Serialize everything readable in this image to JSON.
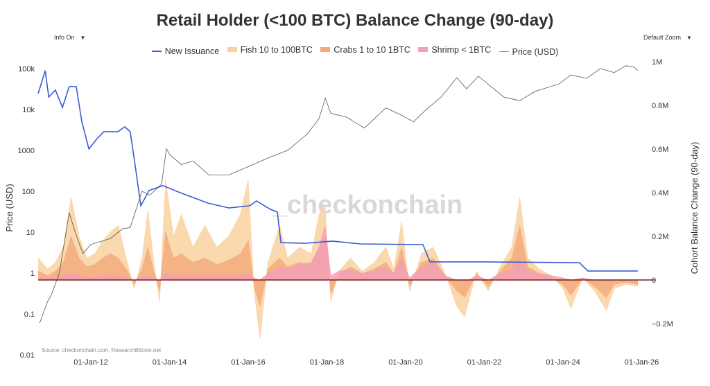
{
  "controls": {
    "info_label": "Info On",
    "zoom_label": "Default Zoom",
    "arrow": "▼"
  },
  "source": "Source: checkonchain.com, ResearchBitcoin.net",
  "watermark": "_checkonchain",
  "chart_data": {
    "type": "area",
    "title": "Retail Holder (<100 BTC) Balance Change (90-day)",
    "legend_position": "top",
    "grid": false,
    "x_axis": {
      "type": "date",
      "range": [
        2010.67,
        2025.9
      ],
      "tick_labels": [
        "01-Jan-12",
        "01-Jan-14",
        "01-Jan-16",
        "01-Jan-18",
        "01-Jan-20",
        "01-Jan-22",
        "01-Jan-24",
        "01-Jan-26"
      ],
      "tick_years": [
        2012,
        2014,
        2016,
        2018,
        2020,
        2022,
        2024,
        2026
      ]
    },
    "y_left": {
      "label": "Price (USD)",
      "scale": "log",
      "range": [
        0.01,
        100000
      ],
      "tick_labels": [
        "100k",
        "10k",
        "1000",
        "100",
        "10",
        "1",
        "0.1",
        "0.01"
      ],
      "tick_values": [
        100000,
        10000,
        1000,
        100,
        10,
        1,
        0.1,
        0.01
      ]
    },
    "y_right": {
      "label": "Cohort Balance Change (90-day)",
      "scale": "linear",
      "range": [
        -0.3,
        1.05
      ],
      "unit": "M",
      "tick_labels": [
        "1M",
        "0.8M",
        "0.6M",
        "0.4M",
        "0.2M",
        "0",
        "−0.2M"
      ],
      "tick_values": [
        1,
        0.8,
        0.6,
        0.4,
        0.2,
        0,
        -0.2
      ]
    },
    "colors": {
      "issuance": "#3a5bd0",
      "fish": "#f9d2a0",
      "crabs": "#f4a97a",
      "shrimp": "#f2a0b4",
      "price": "#555555",
      "zero": "#7a1f1f"
    },
    "x": [
      2010.67,
      2010.9,
      2011.1,
      2011.3,
      2011.5,
      2011.7,
      2011.9,
      2012.1,
      2012.3,
      2012.5,
      2012.7,
      2012.9,
      2013.1,
      2013.3,
      2013.45,
      2013.6,
      2013.75,
      2013.9,
      2014.1,
      2014.3,
      2014.6,
      2014.9,
      2015.2,
      2015.5,
      2015.8,
      2016.0,
      2016.15,
      2016.3,
      2016.5,
      2016.8,
      2017.0,
      2017.3,
      2017.6,
      2017.8,
      2017.95,
      2018.1,
      2018.3,
      2018.6,
      2018.9,
      2019.2,
      2019.5,
      2019.7,
      2019.9,
      2020.1,
      2020.4,
      2020.7,
      2021.0,
      2021.3,
      2021.5,
      2021.8,
      2022.1,
      2022.4,
      2022.7,
      2022.9,
      2023.1,
      2023.4,
      2023.7,
      2024.0,
      2024.2,
      2024.5,
      2024.8,
      2025.1,
      2025.3,
      2025.6,
      2025.9
    ],
    "series": [
      {
        "name": "Fish 10 to 100BTC",
        "axis": "right",
        "values": [
          0.1,
          0.05,
          0.08,
          0.15,
          0.38,
          0.2,
          0.1,
          0.12,
          0.18,
          0.22,
          0.25,
          0.1,
          -0.04,
          0.1,
          0.32,
          0.08,
          -0.1,
          0.46,
          0.2,
          0.3,
          0.15,
          0.25,
          0.15,
          0.2,
          0.3,
          0.46,
          -0.05,
          -0.27,
          0.08,
          0.25,
          0.1,
          0.15,
          0.12,
          0.3,
          0.35,
          -0.1,
          0.04,
          0.1,
          0.04,
          0.08,
          0.15,
          0.05,
          0.27,
          -0.05,
          0.12,
          0.15,
          0.03,
          -0.12,
          -0.17,
          0.04,
          -0.05,
          0.06,
          0.15,
          0.38,
          0.1,
          0.05,
          0.02,
          -0.04,
          -0.13,
          0.01,
          -0.05,
          -0.14,
          -0.04,
          -0.02,
          -0.03
        ]
      },
      {
        "name": "Crabs 1 to 10 1BTC",
        "axis": "right",
        "values": [
          0.04,
          0.02,
          0.04,
          0.08,
          0.2,
          0.1,
          0.06,
          0.07,
          0.1,
          0.12,
          0.1,
          0.05,
          -0.02,
          0.05,
          0.15,
          0.04,
          -0.05,
          0.22,
          0.1,
          0.12,
          0.08,
          0.1,
          0.07,
          0.09,
          0.12,
          0.18,
          -0.03,
          -0.12,
          0.05,
          0.1,
          0.06,
          0.08,
          0.07,
          0.15,
          0.2,
          -0.06,
          0.02,
          0.06,
          0.03,
          0.05,
          0.08,
          0.03,
          0.15,
          -0.03,
          0.08,
          0.1,
          0.02,
          -0.05,
          -0.08,
          0.03,
          -0.03,
          0.04,
          0.1,
          0.25,
          0.06,
          0.03,
          0.01,
          -0.02,
          -0.07,
          0.01,
          -0.03,
          -0.08,
          -0.02,
          -0.01,
          -0.02
        ]
      },
      {
        "name": "Shrimp < 1BTC",
        "axis": "right",
        "values": [
          0.01,
          0.01,
          0.01,
          0.02,
          0.03,
          0.02,
          0.01,
          0.01,
          0.02,
          0.02,
          0.02,
          0.01,
          0.0,
          0.01,
          0.02,
          0.01,
          0.0,
          0.03,
          0.02,
          0.02,
          0.02,
          0.02,
          0.02,
          0.02,
          0.02,
          0.03,
          0.01,
          0.0,
          0.03,
          0.06,
          0.05,
          0.07,
          0.08,
          0.15,
          0.25,
          0.02,
          0.04,
          0.05,
          0.03,
          0.04,
          0.06,
          0.03,
          0.1,
          0.01,
          0.06,
          0.08,
          0.02,
          0.0,
          -0.01,
          0.02,
          0.0,
          0.03,
          0.05,
          0.1,
          0.04,
          0.03,
          0.02,
          0.01,
          0.0,
          0.01,
          0.0,
          -0.01,
          0.0,
          0.0,
          0.0
        ]
      },
      {
        "name": "New Issuance",
        "axis": "right",
        "x": [
          2010.66,
          2010.84,
          2010.93,
          2011.1,
          2011.28,
          2011.45,
          2011.63,
          2011.77,
          2011.95,
          2012.16,
          2012.33,
          2012.69,
          2012.86,
          2013.0,
          2013.13,
          2013.27,
          2013.48,
          2013.83,
          2014.27,
          2014.98,
          2015.51,
          2016.04,
          2016.21,
          2016.56,
          2016.74,
          2016.83,
          2017.44,
          2018.15,
          2018.85,
          2020.44,
          2020.62,
          2022.03,
          2024.42,
          2024.63,
          2025.9
        ],
        "values": [
          0.854,
          0.959,
          0.838,
          0.87,
          0.79,
          0.886,
          0.886,
          0.727,
          0.6,
          0.648,
          0.679,
          0.679,
          0.702,
          0.679,
          0.521,
          0.34,
          0.41,
          0.432,
          0.4,
          0.352,
          0.33,
          0.34,
          0.362,
          0.324,
          0.311,
          0.171,
          0.168,
          0.178,
          0.165,
          0.162,
          0.083,
          0.083,
          0.079,
          0.041,
          0.041
        ]
      },
      {
        "name": "Price (USD)",
        "axis": "left",
        "x": [
          2010.7,
          2010.9,
          2011.0,
          2011.2,
          2011.45,
          2011.6,
          2011.8,
          2012.0,
          2012.5,
          2012.8,
          2013.0,
          2013.3,
          2013.5,
          2013.8,
          2013.92,
          2014.0,
          2014.3,
          2014.6,
          2015.0,
          2015.5,
          2016.0,
          2016.5,
          2017.0,
          2017.5,
          2017.8,
          2017.96,
          2018.1,
          2018.5,
          2018.95,
          2019.5,
          2019.9,
          2020.2,
          2020.5,
          2020.9,
          2021.3,
          2021.55,
          2021.85,
          2022.5,
          2022.9,
          2023.3,
          2023.9,
          2024.2,
          2024.6,
          2024.95,
          2025.3,
          2025.6,
          2025.8,
          2025.9
        ],
        "values": [
          0.06,
          0.2,
          0.3,
          1,
          30,
          10,
          3,
          5,
          7,
          12,
          13,
          100,
          80,
          150,
          1100,
          800,
          450,
          550,
          250,
          250,
          400,
          650,
          1000,
          2500,
          6000,
          19000,
          8000,
          6500,
          3500,
          11000,
          7200,
          5000,
          9500,
          20000,
          60000,
          32000,
          65000,
          20000,
          16500,
          28000,
          42000,
          70000,
          58000,
          100000,
          80000,
          118000,
          110000,
          90000
        ]
      }
    ]
  }
}
